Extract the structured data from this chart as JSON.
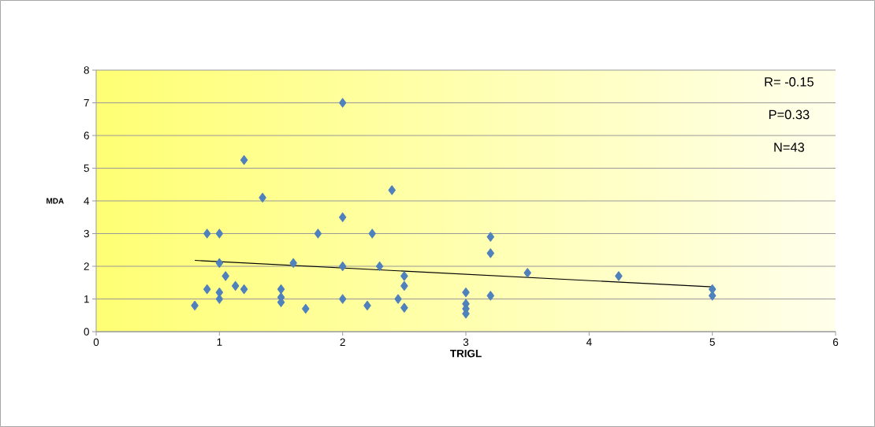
{
  "chart_data": {
    "type": "scatter",
    "xlabel": "TRIGL",
    "ylabel": "MDA",
    "xlim": [
      0,
      6
    ],
    "ylim": [
      0,
      8
    ],
    "xticks": [
      0,
      1,
      2,
      3,
      4,
      5,
      6
    ],
    "yticks": [
      0,
      1,
      2,
      3,
      4,
      5,
      6,
      7,
      8
    ],
    "grid": "y",
    "marker": "diamond",
    "annotations": [
      "R= -0.15",
      "P=0.33",
      "N=43"
    ],
    "series": [
      {
        "color": "#4f81bd",
        "x": [
          0.8,
          0.9,
          0.9,
          1.0,
          1.0,
          1.0,
          1.0,
          1.05,
          1.13,
          1.2,
          1.2,
          1.35,
          1.5,
          1.5,
          1.5,
          1.6,
          1.7,
          1.8,
          2.0,
          2.0,
          2.0,
          2.0,
          2.2,
          2.24,
          2.3,
          2.4,
          2.45,
          2.5,
          2.5,
          2.5,
          3.0,
          3.0,
          3.0,
          3.0,
          3.2,
          3.2,
          3.2,
          3.5,
          4.24,
          5.0,
          5.0
        ],
        "values": [
          0.8,
          1.3,
          3.0,
          3.0,
          2.1,
          1.2,
          1.0,
          1.7,
          1.4,
          1.3,
          5.25,
          4.1,
          1.3,
          1.05,
          0.9,
          2.1,
          0.7,
          3.0,
          7.0,
          3.5,
          2.0,
          1.0,
          0.8,
          3.0,
          2.0,
          4.33,
          1.0,
          1.7,
          1.4,
          0.73,
          1.2,
          0.85,
          0.7,
          0.55,
          2.9,
          2.4,
          1.1,
          1.8,
          1.7,
          1.3,
          1.1
        ]
      },
      {
        "type": "line",
        "color": "#000000",
        "marker": "none",
        "x": [
          0.8,
          5.0
        ],
        "values": [
          2.18,
          1.37
        ]
      }
    ]
  }
}
